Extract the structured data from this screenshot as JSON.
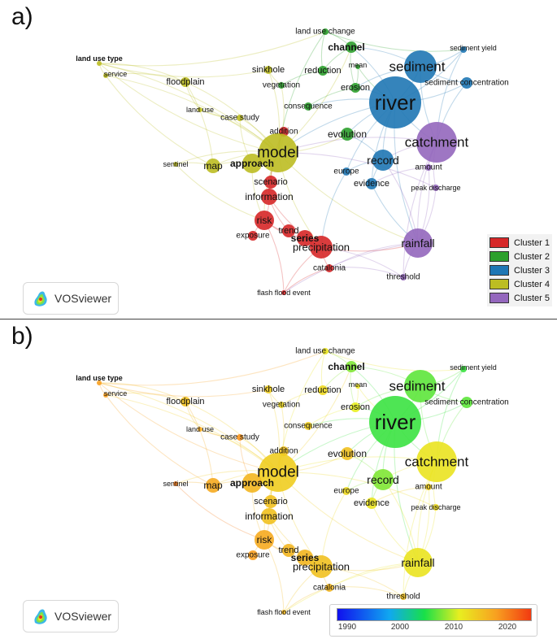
{
  "panel_a": {
    "label": "a)",
    "legend": [
      {
        "name": "Cluster 1",
        "color": "#d62728"
      },
      {
        "name": "Cluster 2",
        "color": "#2ca02c"
      },
      {
        "name": "Cluster 3",
        "color": "#1f77b4"
      },
      {
        "name": "Cluster 4",
        "color": "#bcbd22"
      },
      {
        "name": "Cluster 5",
        "color": "#9467bd"
      }
    ]
  },
  "panel_b": {
    "label": "b)",
    "colorbar_ticks": [
      "1990",
      "2000",
      "2010",
      "2020"
    ]
  },
  "logo_text": "VOSviewer",
  "colors": {
    "cluster1": "#d62728",
    "cluster2": "#2ca02c",
    "cluster3": "#1f77b4",
    "cluster4": "#bcbd22",
    "cluster5": "#9467bd"
  },
  "terms": [
    {
      "id": "land use change",
      "label": "land use change",
      "cluster": 2,
      "year": 2010
    },
    {
      "id": "channel",
      "label": "channel",
      "cluster": 2,
      "year": 2006
    },
    {
      "id": "sediment yield",
      "label": "sediment yield",
      "cluster": 3,
      "year": 2004
    },
    {
      "id": "land use type",
      "label": "land use type",
      "cluster": 4,
      "year": 2016
    },
    {
      "id": "sediment",
      "label": "sediment",
      "cluster": 3,
      "year": 2005
    },
    {
      "id": "mean",
      "label": "mean",
      "cluster": 2,
      "year": 2010
    },
    {
      "id": "service",
      "label": "service",
      "cluster": 4,
      "year": 2016
    },
    {
      "id": "sinkhole",
      "label": "sinkhole",
      "cluster": 4,
      "year": 2012
    },
    {
      "id": "reduction",
      "label": "reduction",
      "cluster": 2,
      "year": 2011
    },
    {
      "id": "floodplain",
      "label": "floodplain",
      "cluster": 4,
      "year": 2013
    },
    {
      "id": "vegetation",
      "label": "vegetation",
      "cluster": 2,
      "year": 2011
    },
    {
      "id": "erosion",
      "label": "erosion",
      "cluster": 2,
      "year": 2009
    },
    {
      "id": "sediment concentration",
      "label": "sediment concentration",
      "cluster": 3,
      "year": 2005
    },
    {
      "id": "river",
      "label": "river",
      "cluster": 3,
      "year": 2004
    },
    {
      "id": "land use",
      "label": "land use",
      "cluster": 4,
      "year": 2015
    },
    {
      "id": "consequence",
      "label": "consequence",
      "cluster": 2,
      "year": 2012
    },
    {
      "id": "case study",
      "label": "case study",
      "cluster": 4,
      "year": 2017
    },
    {
      "id": "addition",
      "label": "addition",
      "cluster": 1,
      "year": 2013
    },
    {
      "id": "evolution",
      "label": "evolution",
      "cluster": 2,
      "year": 2013
    },
    {
      "id": "catchment",
      "label": "catchment",
      "cluster": 5,
      "year": 2010
    },
    {
      "id": "model",
      "label": "model",
      "cluster": 4,
      "year": 2012
    },
    {
      "id": "record",
      "label": "record",
      "cluster": 3,
      "year": 2006
    },
    {
      "id": "sentinel",
      "label": "sentinel",
      "cluster": 4,
      "year": 2019
    },
    {
      "id": "map",
      "label": "map",
      "cluster": 4,
      "year": 2015
    },
    {
      "id": "approach",
      "label": "approach",
      "cluster": 4,
      "year": 2014
    },
    {
      "id": "amount",
      "label": "amount",
      "cluster": 5,
      "year": 2012
    },
    {
      "id": "europe",
      "label": "europe",
      "cluster": 3,
      "year": 2011
    },
    {
      "id": "scenario",
      "label": "scenario",
      "cluster": 1,
      "year": 2013
    },
    {
      "id": "evidence",
      "label": "evidence",
      "cluster": 3,
      "year": 2010
    },
    {
      "id": "peak discharge",
      "label": "peak discharge",
      "cluster": 5,
      "year": 2011
    },
    {
      "id": "information",
      "label": "information",
      "cluster": 1,
      "year": 2013
    },
    {
      "id": "risk",
      "label": "risk",
      "cluster": 1,
      "year": 2015
    },
    {
      "id": "trend",
      "label": "trend",
      "cluster": 1,
      "year": 2014
    },
    {
      "id": "exposure",
      "label": "exposure",
      "cluster": 1,
      "year": 2016
    },
    {
      "id": "series",
      "label": "series",
      "cluster": 1,
      "year": 2014
    },
    {
      "id": "precipitation",
      "label": "precipitation",
      "cluster": 1,
      "year": 2013
    },
    {
      "id": "rainfall",
      "label": "rainfall",
      "cluster": 5,
      "year": 2010
    },
    {
      "id": "catalonia",
      "label": "catalonia",
      "cluster": 1,
      "year": 2014
    },
    {
      "id": "threshold",
      "label": "threshold",
      "cluster": 5,
      "year": 2013
    },
    {
      "id": "flash flood event",
      "label": "flash flood event",
      "cluster": 1,
      "year": 2014
    }
  ]
}
